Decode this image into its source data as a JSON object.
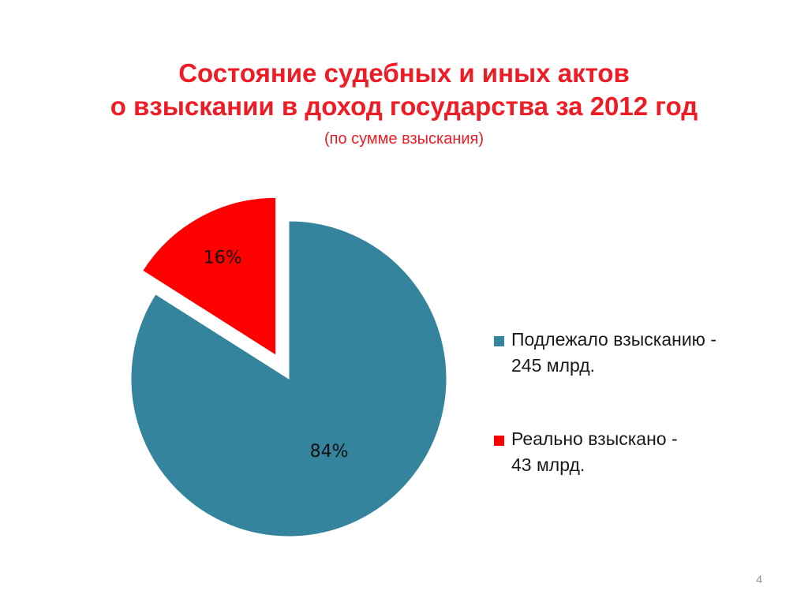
{
  "slide": {
    "title_line1": "Состояние судебных и иных актов",
    "title_line2": "о взыскании в доход государства за 2012 год",
    "subtitle": "(по сумме взыскания)",
    "page_number": "4"
  },
  "colors": {
    "title": "#ee1c25",
    "series_subject": "#33849c",
    "series_collected": "#ff0000"
  },
  "chart_data": {
    "type": "pie",
    "exploded_slice": "Реально взыскано - 43 млрд.",
    "slices": [
      {
        "label": "Подлежало взысканию - 245 млрд.",
        "legend_line1": "Подлежало взысканию -",
        "legend_line2": "245 млрд.",
        "value": 84,
        "data_label": "84%",
        "color": "#33849c"
      },
      {
        "label": "Реально взыскано - 43 млрд.",
        "legend_line1": "Реально взыскано -",
        "legend_line2": "43 млрд.",
        "value": 16,
        "data_label": "16%",
        "color": "#ff0000"
      }
    ],
    "legend_position": "right"
  }
}
